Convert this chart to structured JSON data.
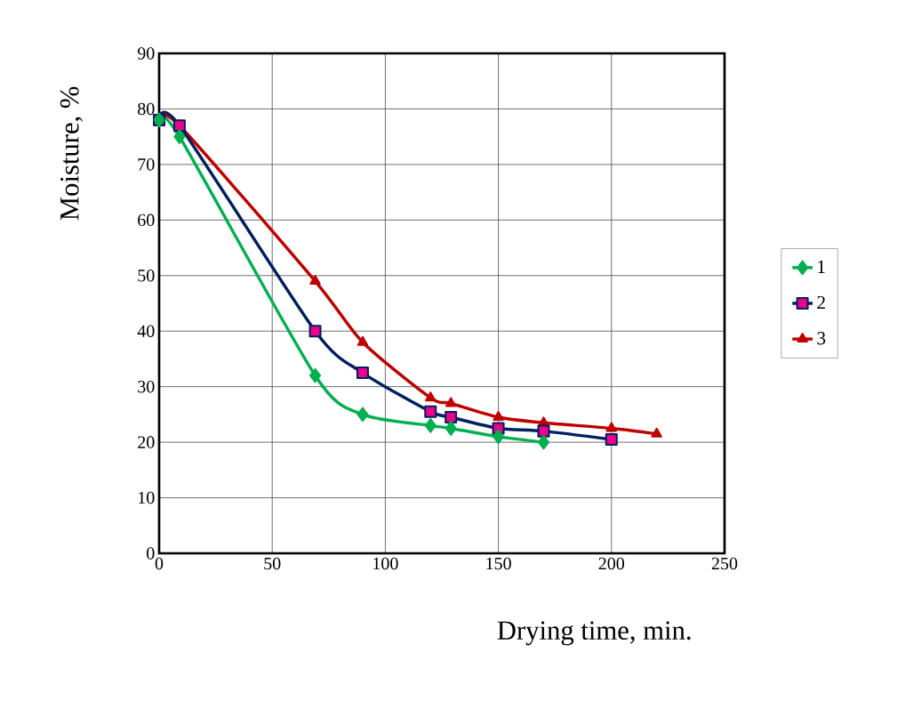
{
  "chart_data": {
    "type": "line",
    "xlabel": "Drying time, min.",
    "ylabel": "Moisture, %",
    "xlim": [
      0,
      250
    ],
    "ylim": [
      0,
      90
    ],
    "xticks": [
      0,
      50,
      100,
      150,
      200,
      250
    ],
    "yticks": [
      0,
      10,
      20,
      30,
      40,
      50,
      60,
      70,
      80,
      90
    ],
    "grid": true,
    "legend": "right",
    "line_style": "solid",
    "series": [
      {
        "name": "1",
        "color": "#00b050",
        "marker": "diamond",
        "x": [
          0,
          9,
          69,
          90,
          120,
          129,
          150,
          170
        ],
        "values": [
          78,
          75,
          32,
          25,
          23,
          22.5,
          21,
          20
        ]
      },
      {
        "name": "2",
        "color": "#002060",
        "marker": "square",
        "x": [
          0,
          9,
          69,
          90,
          120,
          129,
          150,
          170,
          200
        ],
        "values": [
          78,
          77,
          40,
          32.5,
          25.5,
          24.5,
          22.5,
          22,
          20.5
        ]
      },
      {
        "name": "3",
        "color": "#c00000",
        "marker": "triangle",
        "x": [
          0,
          9,
          69,
          90,
          120,
          129,
          150,
          170,
          200,
          220
        ],
        "values": [
          78,
          77,
          49,
          38,
          28,
          27,
          24.5,
          23.5,
          22.5,
          21.5
        ]
      }
    ]
  }
}
